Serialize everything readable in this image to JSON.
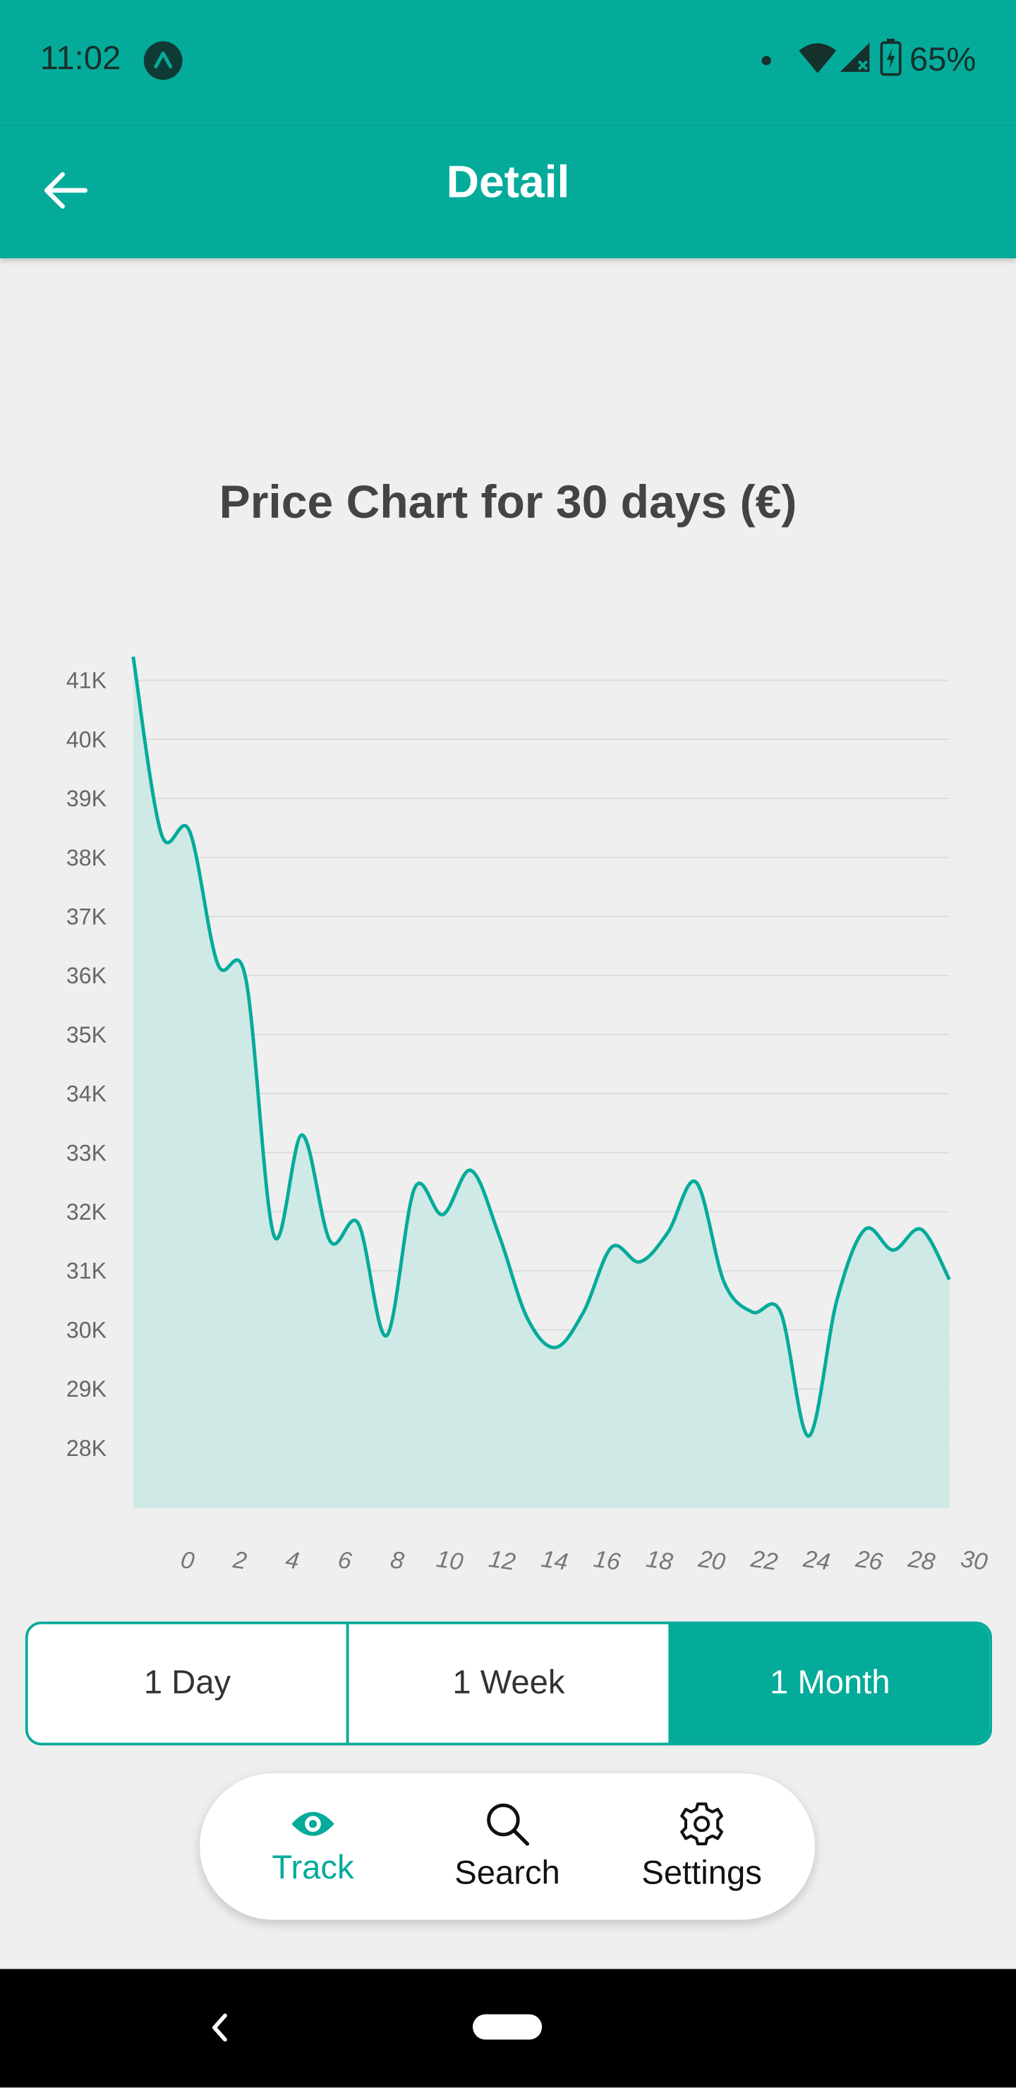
{
  "status_bar": {
    "time": "11:02",
    "battery": "65%",
    "icons": [
      "app-notification-icon",
      "dot-icon",
      "wifi-icon",
      "signal-icon",
      "battery-icon"
    ]
  },
  "app_bar": {
    "title": "Detail",
    "back_icon": "arrow-left-icon"
  },
  "colors": {
    "accent": "#05ab9a",
    "fill": "#c9e7e4",
    "background": "#efefef"
  },
  "range_selector": {
    "options": [
      "1 Day",
      "1 Week",
      "1 Month"
    ],
    "selected": "1 Month"
  },
  "bottom_nav": {
    "items": [
      {
        "label": "Track",
        "icon": "eye-icon",
        "active": true
      },
      {
        "label": "Search",
        "icon": "search-icon",
        "active": false
      },
      {
        "label": "Settings",
        "icon": "gear-icon",
        "active": false
      }
    ]
  },
  "chart_data": {
    "type": "area",
    "title": "Price Chart for 30 days (€)",
    "xlabel": "",
    "ylabel": "",
    "x_ticks": [
      "0",
      "2",
      "4",
      "6",
      "8",
      "10",
      "12",
      "14",
      "16",
      "18",
      "20",
      "22",
      "24",
      "26",
      "28",
      "30"
    ],
    "y_ticks": [
      "41K",
      "40K",
      "39K",
      "38K",
      "37K",
      "36K",
      "35K",
      "34K",
      "33K",
      "32K",
      "31K",
      "30K",
      "29K",
      "28K"
    ],
    "y_tick_values": [
      41000,
      40000,
      39000,
      38000,
      37000,
      36000,
      35000,
      34000,
      33000,
      32000,
      31000,
      30000,
      29000,
      28000
    ],
    "grid": true,
    "series": [
      {
        "points": [
          [
            0,
            41400
          ],
          [
            1,
            38400
          ],
          [
            2,
            38450
          ],
          [
            3,
            36200
          ],
          [
            4,
            35950
          ],
          [
            5,
            31600
          ],
          [
            6,
            33300
          ],
          [
            7,
            31500
          ],
          [
            8,
            31800
          ],
          [
            9,
            29900
          ],
          [
            10,
            32400
          ],
          [
            11,
            31950
          ],
          [
            12,
            32700
          ],
          [
            13,
            31600
          ],
          [
            14,
            30200
          ],
          [
            15,
            29700
          ],
          [
            16,
            30300
          ],
          [
            17,
            31400
          ],
          [
            18,
            31150
          ],
          [
            19,
            31650
          ],
          [
            20,
            32500
          ],
          [
            21,
            30800
          ],
          [
            22,
            30300
          ],
          [
            23,
            30300
          ],
          [
            24,
            28200
          ],
          [
            25,
            30500
          ],
          [
            26,
            31700
          ],
          [
            27,
            31350
          ],
          [
            28,
            31700
          ],
          [
            29,
            30850
          ]
        ]
      }
    ]
  }
}
